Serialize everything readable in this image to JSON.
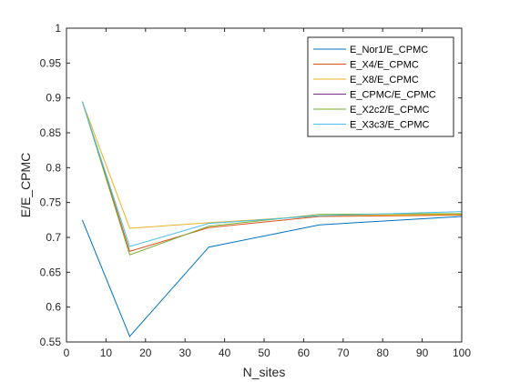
{
  "chart_data": {
    "type": "line",
    "xlabel": "N_sites",
    "ylabel": "E/E_CPMC",
    "xlim": [
      0,
      100
    ],
    "ylim": [
      0.55,
      1
    ],
    "xticks": [
      0,
      10,
      20,
      30,
      40,
      50,
      60,
      70,
      80,
      90,
      100
    ],
    "yticks": [
      0.55,
      0.6,
      0.65,
      0.7,
      0.75,
      0.8,
      0.85,
      0.9,
      0.95,
      1
    ],
    "ytick_labels": [
      "0.55",
      "0.6",
      "0.65",
      "0.7",
      "0.75",
      "0.8",
      "0.85",
      "0.9",
      "0.95",
      "1"
    ],
    "grid": false,
    "legend_position": "top-right",
    "x": [
      4,
      16,
      36,
      64,
      100
    ],
    "series": [
      {
        "name": "E_Nor1/E_CPMC",
        "color": "#0072BD",
        "values": [
          0.725,
          0.558,
          0.686,
          0.718,
          0.73
        ]
      },
      {
        "name": "E_X4/E_CPMC",
        "color": "#D95319",
        "values": [
          0.895,
          0.68,
          0.714,
          0.73,
          0.732
        ]
      },
      {
        "name": "E_X8/E_CPMC",
        "color": "#EDB120",
        "values": [
          0.895,
          0.713,
          0.721,
          0.731,
          0.733
        ]
      },
      {
        "name": "E_CPMC/E_CPMC",
        "color": "#7E2F8E",
        "values": [
          1,
          1,
          1,
          1,
          1
        ]
      },
      {
        "name": "E_X2c2/E_CPMC",
        "color": "#77AC30",
        "values": [
          0.895,
          0.675,
          0.716,
          0.733,
          0.734
        ]
      },
      {
        "name": "E_X3c3/E_CPMC",
        "color": "#4DBEEE",
        "values": [
          0.895,
          0.687,
          0.72,
          0.731,
          0.737
        ]
      }
    ]
  }
}
